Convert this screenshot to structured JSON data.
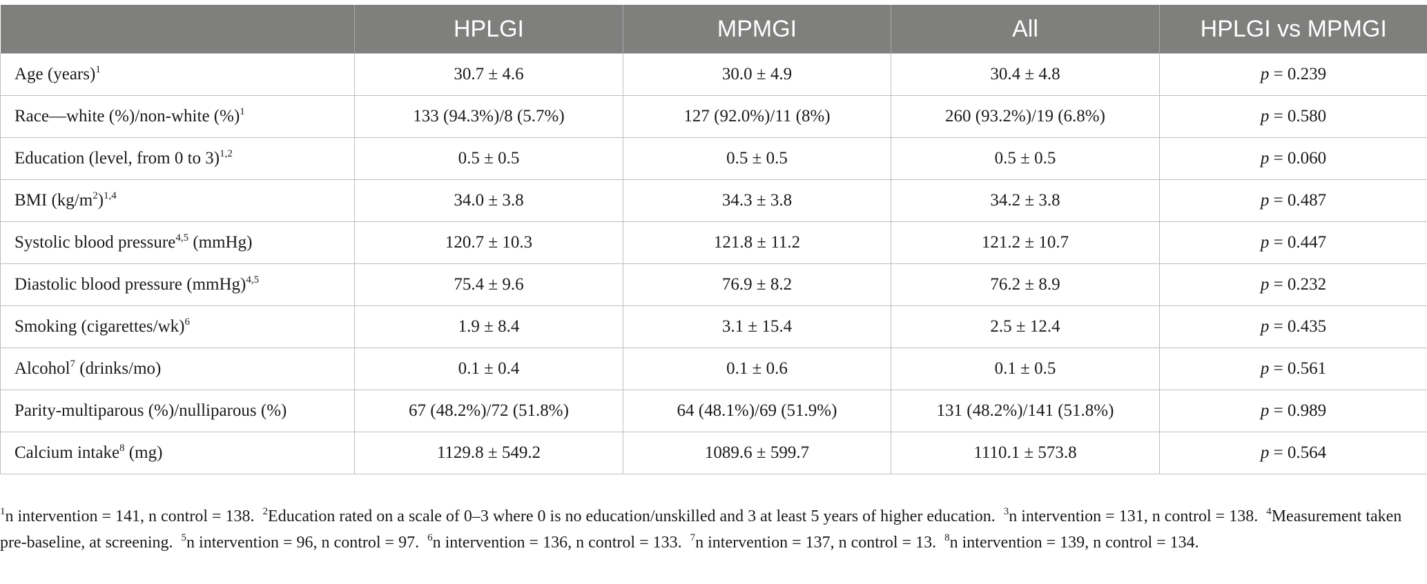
{
  "headers": [
    "",
    "HPLGI",
    "MPMGI",
    "All",
    "HPLGI vs MPMGI"
  ],
  "rows": [
    {
      "label": "Age (years)",
      "sup": "1",
      "label_after": "",
      "hplgi": "30.7 ± 4.6",
      "mpmgi": "30.0 ± 4.9",
      "all": "30.4 ± 4.8",
      "p_prefix": "p",
      "p": " = 0.239"
    },
    {
      "label": "Race—white (%)/non-white (%)",
      "sup": "1",
      "label_after": "",
      "hplgi": "133 (94.3%)/8 (5.7%)",
      "mpmgi": "127 (92.0%)/11 (8%)",
      "all": "260 (93.2%)/19 (6.8%)",
      "p_prefix": "p",
      "p": " = 0.580"
    },
    {
      "label": "Education (level, from 0 to 3)",
      "sup": "1,2",
      "label_after": "",
      "hplgi": "0.5 ± 0.5",
      "mpmgi": "0.5 ± 0.5",
      "all": "0.5 ± 0.5",
      "p_prefix": "p",
      "p": " = 0.060"
    },
    {
      "label": "BMI (kg/m",
      "sup_inner": "2",
      "label_mid": ")",
      "sup": "1,4",
      "label_after": "",
      "hplgi": "34.0 ± 3.8",
      "mpmgi": "34.3 ± 3.8",
      "all": "34.2 ± 3.8",
      "p_prefix": "p",
      "p": " = 0.487"
    },
    {
      "label": "Systolic blood pressure",
      "sup": "4,5",
      "label_after": " (mmHg)",
      "hplgi": "120.7 ± 10.3",
      "mpmgi": "121.8 ± 11.2",
      "all": "121.2 ± 10.7",
      "p_prefix": "p",
      "p": " = 0.447"
    },
    {
      "label": "Diastolic blood pressure (mmHg)",
      "sup": "4,5",
      "label_after": "",
      "hplgi": "75.4 ± 9.6",
      "mpmgi": "76.9 ± 8.2",
      "all": "76.2 ± 8.9",
      "p_prefix": "p",
      "p": " = 0.232"
    },
    {
      "label": "Smoking (cigarettes/wk)",
      "sup": "6",
      "label_after": "",
      "hplgi": "1.9 ± 8.4",
      "mpmgi": "3.1 ± 15.4",
      "all": "2.5 ± 12.4",
      "p_prefix": "p",
      "p": " = 0.435"
    },
    {
      "label": "Alcohol",
      "sup": "7",
      "label_after": " (drinks/mo)",
      "hplgi": "0.1 ± 0.4",
      "mpmgi": "0.1 ± 0.6",
      "all": "0.1 ± 0.5",
      "p_prefix": "p",
      "p": " = 0.561"
    },
    {
      "label": "Parity-multiparous (%)/nulliparous (%)",
      "sup": "",
      "label_after": "",
      "hplgi": "67 (48.2%)/72 (51.8%)",
      "mpmgi": "64 (48.1%)/69 (51.9%)",
      "all": "131 (48.2%)/141 (51.8%)",
      "p_prefix": "p",
      "p": " = 0.989"
    },
    {
      "label": "Calcium intake",
      "sup": "8",
      "label_after": " (mg)",
      "hplgi": "1129.8 ± 549.2",
      "mpmgi": "1089.6 ± 599.7",
      "all": "1110.1 ± 573.8",
      "p_prefix": "p",
      "p": " = 0.564"
    }
  ],
  "footnotes": [
    {
      "mark": "1",
      "text": "n intervention = 141, n control = 138."
    },
    {
      "mark": "2",
      "text": "Education rated on a scale of 0–3 where 0 is no education/unskilled and 3 at least 5 years of higher education."
    },
    {
      "mark": "3",
      "text": "n intervention = 131, n control = 138."
    },
    {
      "mark": "4",
      "text": "Measurement taken pre-baseline, at screening."
    },
    {
      "mark": "5",
      "text": "n intervention = 96, n control = 97."
    },
    {
      "mark": "6",
      "text": "n intervention = 136, n control = 133."
    },
    {
      "mark": "7",
      "text": "n intervention = 137, n control = 13."
    },
    {
      "mark": "8",
      "text": "n intervention = 139, n control = 134."
    }
  ]
}
